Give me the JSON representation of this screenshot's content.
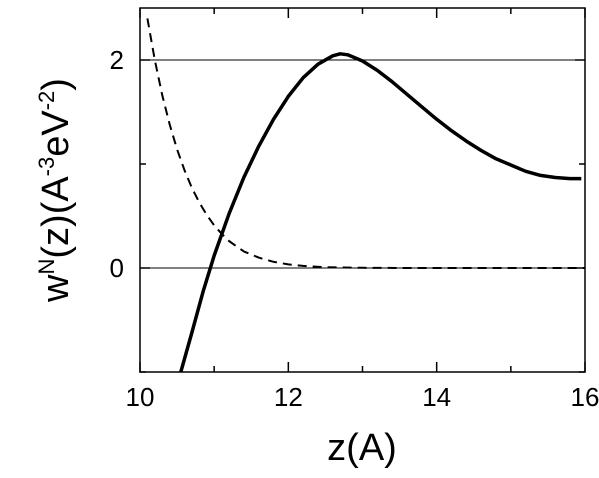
{
  "chart_data": {
    "type": "line",
    "xlabel": "z(A)",
    "ylabel": {
      "w": "w",
      "sup_N": "N",
      "mid": "(z)(A",
      "sup_neg3": "-3",
      "ev": "eV",
      "sup_neg2": "-2",
      "close": ")"
    },
    "xlim": [
      10,
      16
    ],
    "ylim": [
      -1,
      2.5
    ],
    "xticks": [
      10,
      12,
      14,
      16
    ],
    "yticks": [
      0,
      2
    ],
    "x_tick_labels": [
      "10",
      "12",
      "14",
      "16"
    ],
    "y_tick_labels": [
      "0",
      "2"
    ],
    "reference_lines_y": [
      0,
      2
    ],
    "grid": false,
    "series": [
      {
        "style": "solid",
        "x": [
          10.55,
          10.7,
          10.85,
          11.0,
          11.2,
          11.4,
          11.6,
          11.8,
          12.0,
          12.2,
          12.4,
          12.6,
          12.7,
          12.8,
          13.0,
          13.2,
          13.4,
          13.6,
          13.8,
          14.0,
          14.2,
          14.4,
          14.6,
          14.8,
          15.0,
          15.2,
          15.4,
          15.6,
          15.8,
          15.95
        ],
        "y": [
          -1.0,
          -0.62,
          -0.23,
          0.12,
          0.52,
          0.87,
          1.17,
          1.43,
          1.65,
          1.83,
          1.96,
          2.04,
          2.06,
          2.05,
          1.99,
          1.9,
          1.79,
          1.67,
          1.55,
          1.43,
          1.32,
          1.22,
          1.13,
          1.05,
          0.99,
          0.93,
          0.89,
          0.87,
          0.86,
          0.86
        ]
      },
      {
        "style": "dashed",
        "x": [
          10.1,
          10.2,
          10.3,
          10.4,
          10.5,
          10.6,
          10.7,
          10.8,
          10.9,
          11.0,
          11.1,
          11.2,
          11.4,
          11.6,
          11.8,
          12.0,
          12.2,
          12.5,
          13.0,
          13.5,
          14.0,
          15.0,
          16.0
        ],
        "y": [
          2.4,
          2.0,
          1.66,
          1.38,
          1.14,
          0.94,
          0.77,
          0.63,
          0.51,
          0.41,
          0.33,
          0.26,
          0.16,
          0.1,
          0.06,
          0.035,
          0.02,
          0.008,
          0.002,
          0.0,
          0.0,
          0.0,
          0.0
        ]
      }
    ]
  }
}
